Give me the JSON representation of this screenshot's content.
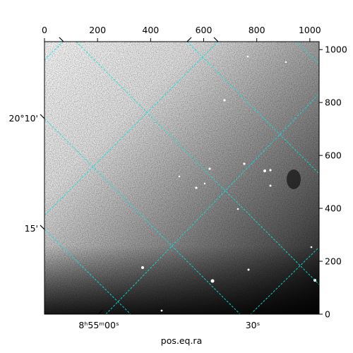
{
  "chart_data": {
    "type": "image",
    "x_label": "pos.eq.ra",
    "xlim": [
      0,
      1035
    ],
    "xticks": [
      0,
      200,
      400,
      600,
      800,
      1000
    ],
    "ylim": [
      0,
      1030
    ],
    "yticks": [
      0,
      200,
      400,
      600,
      800,
      1000
    ],
    "ra_labels": [
      "8ʰ55ᵐ00ˢ",
      "30ˢ"
    ],
    "dec_labels": [
      "20°10'",
      "15'"
    ],
    "grid_color": "#00e5e5"
  }
}
